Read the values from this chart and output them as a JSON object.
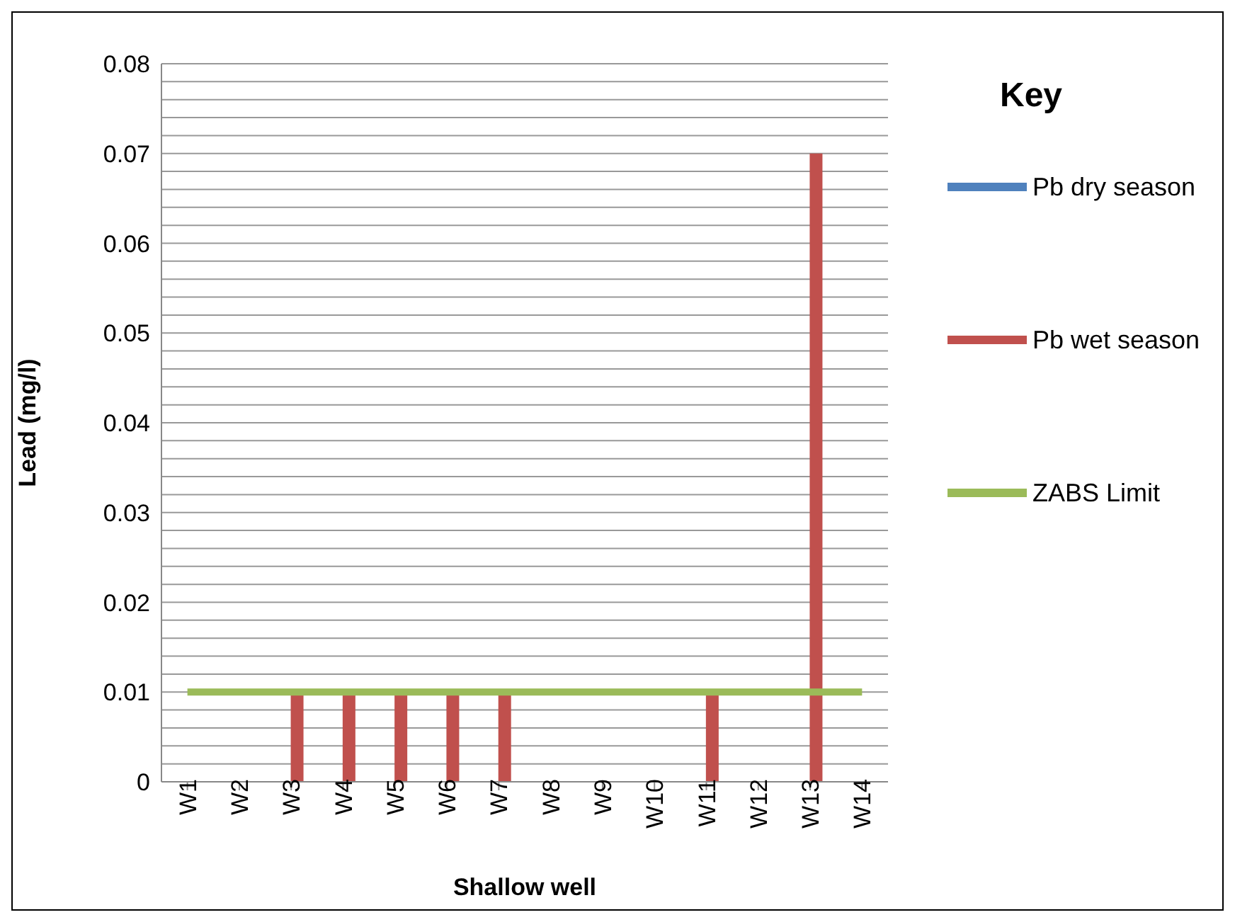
{
  "chart_data": {
    "type": "bar",
    "xlabel": "Shallow well",
    "ylabel": "Lead (mg/l)",
    "legend_title": "Key",
    "categories": [
      "W1",
      "W2",
      "W3",
      "W4",
      "W5",
      "W6",
      "W7",
      "W8",
      "W9",
      "W10",
      "W11",
      "W12",
      "W13",
      "W14"
    ],
    "series": [
      {
        "name": "Pb dry season",
        "color": "#4f81bd",
        "values": [
          0,
          0,
          0,
          0,
          0,
          0,
          0,
          0,
          0,
          0,
          0,
          0,
          0,
          0
        ]
      },
      {
        "name": "Pb wet season",
        "color": "#c0504d",
        "values": [
          0,
          0,
          0.01,
          0.01,
          0.01,
          0.01,
          0.01,
          0,
          0,
          0,
          0.01,
          0,
          0.07,
          0
        ]
      },
      {
        "name": "ZABS Limit",
        "type": "line",
        "color": "#9bbb59",
        "values": [
          0.01,
          0.01,
          0.01,
          0.01,
          0.01,
          0.01,
          0.01,
          0.01,
          0.01,
          0.01,
          0.01,
          0.01,
          0.01,
          0.01
        ]
      }
    ],
    "ylim": [
      0,
      0.08
    ],
    "yticks": [
      0,
      {
        "value": 0.002,
        "label": null
      },
      {
        "value": 0.004,
        "label": null
      },
      {
        "value": 0.006,
        "label": null
      },
      {
        "value": 0.008,
        "label": null
      },
      0.01,
      {
        "value": 0.012,
        "label": null
      },
      {
        "value": 0.014,
        "label": null
      },
      {
        "value": 0.016,
        "label": null
      },
      {
        "value": 0.018,
        "label": null
      },
      0.02,
      {
        "value": 0.022,
        "label": null
      },
      {
        "value": 0.024,
        "label": null
      },
      {
        "value": 0.026,
        "label": null
      },
      {
        "value": 0.028,
        "label": null
      },
      0.03,
      {
        "value": 0.032,
        "label": null
      },
      {
        "value": 0.034,
        "label": null
      },
      {
        "value": 0.036,
        "label": null
      },
      {
        "value": 0.038,
        "label": null
      },
      0.04,
      {
        "value": 0.042,
        "label": null
      },
      {
        "value": 0.044,
        "label": null
      },
      {
        "value": 0.046,
        "label": null
      },
      {
        "value": 0.048,
        "label": null
      },
      0.05,
      {
        "value": 0.052,
        "label": null
      },
      {
        "value": 0.054,
        "label": null
      },
      {
        "value": 0.056,
        "label": null
      },
      {
        "value": 0.058,
        "label": null
      },
      0.06,
      {
        "value": 0.062,
        "label": null
      },
      {
        "value": 0.064,
        "label": null
      },
      {
        "value": 0.066,
        "label": null
      },
      {
        "value": 0.068,
        "label": null
      },
      0.07,
      {
        "value": 0.072,
        "label": null
      },
      {
        "value": 0.074,
        "label": null
      },
      {
        "value": 0.076,
        "label": null
      },
      {
        "value": 0.078,
        "label": null
      },
      0.08
    ],
    "grid": "y",
    "legend": "right"
  }
}
